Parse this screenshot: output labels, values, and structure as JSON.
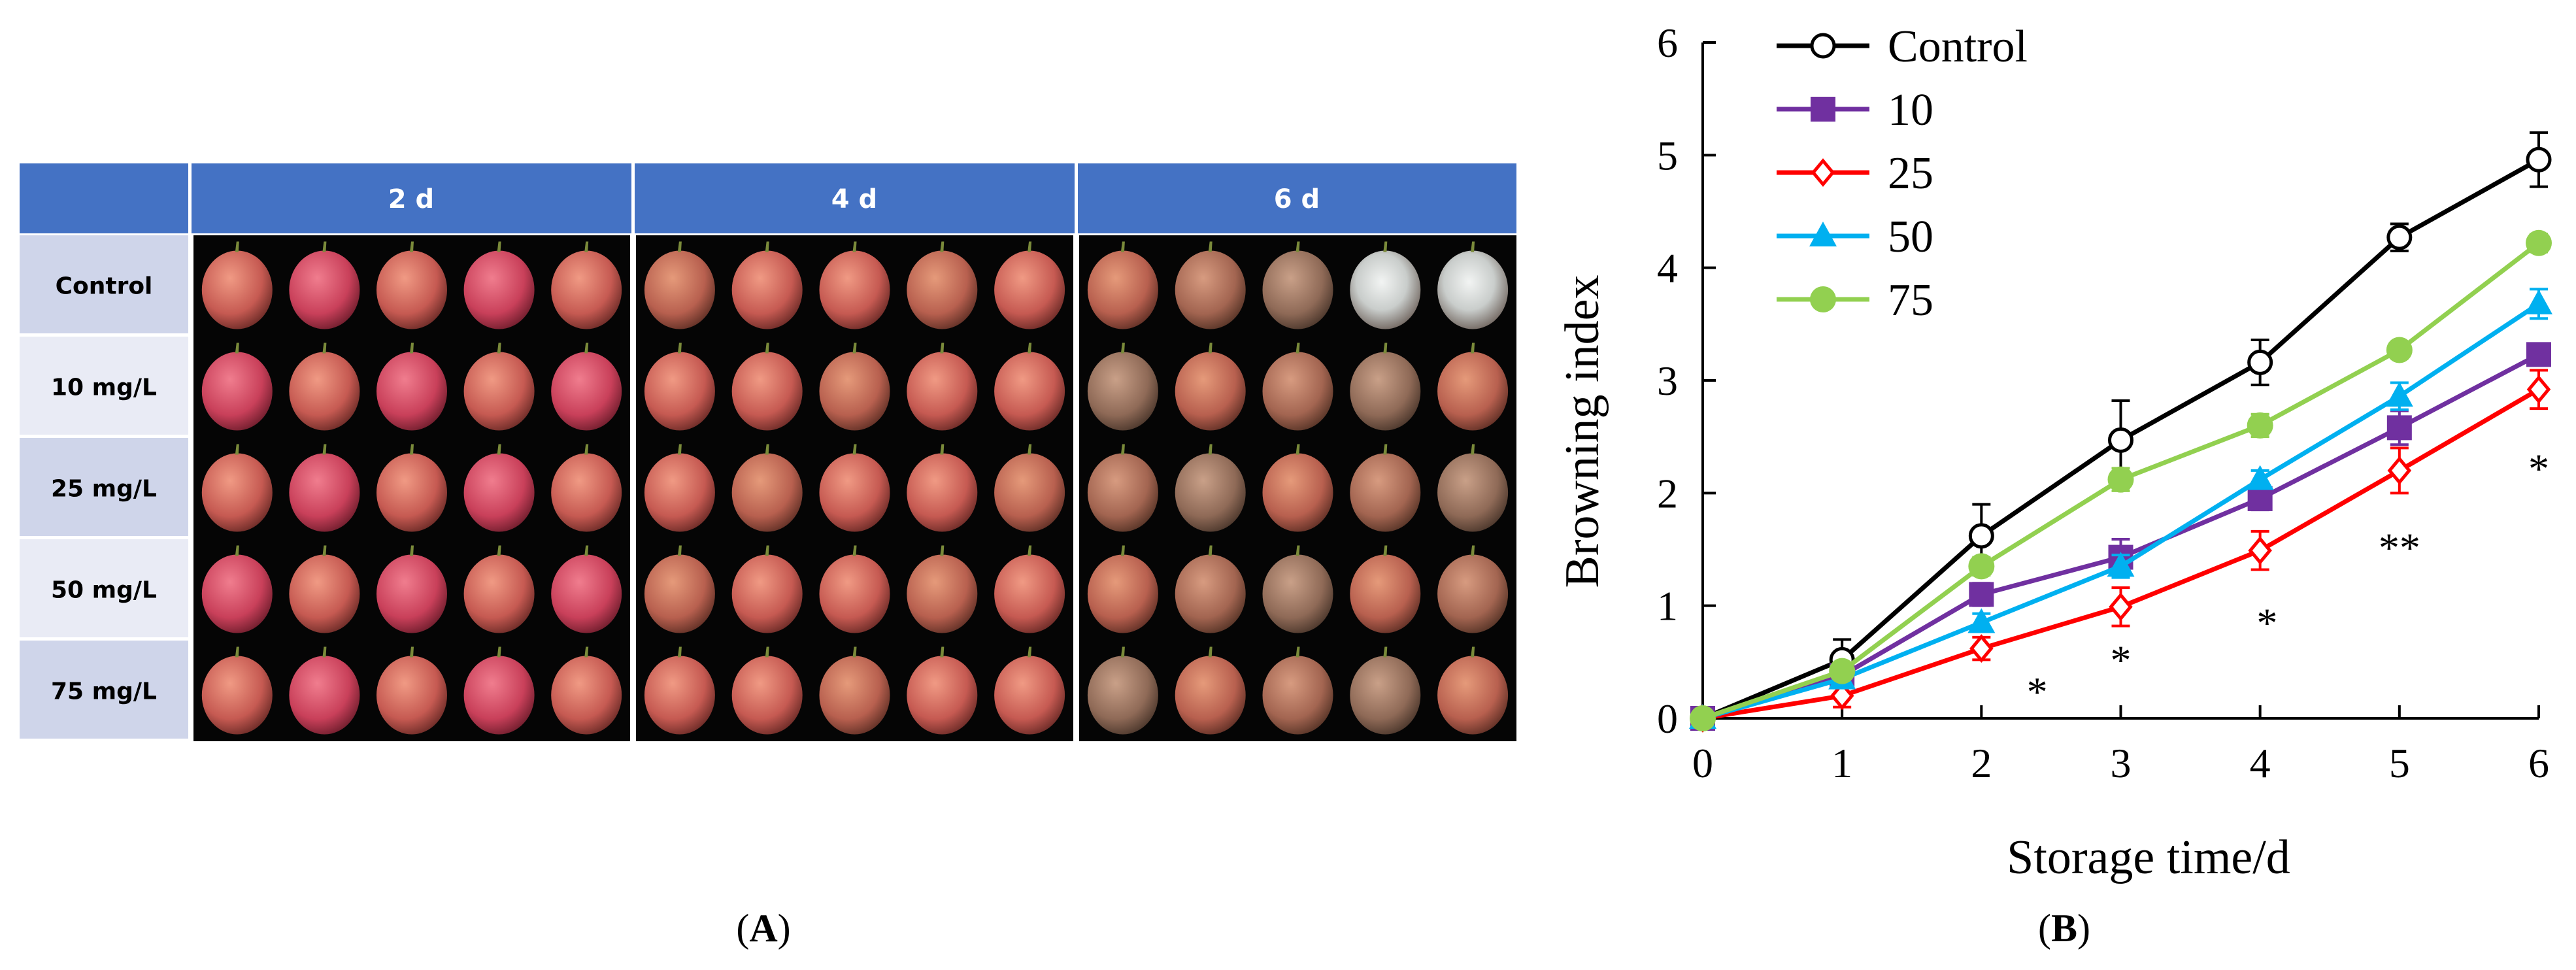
{
  "panel_a": {
    "label": "A",
    "column_headers": [
      "2 d",
      "4 d",
      "6 d"
    ],
    "row_labels": [
      "Control",
      "10 mg/L",
      "25 mg/L",
      "50 mg/L",
      "75 mg/L"
    ],
    "header_color": "#4472C4",
    "row_label_colors": [
      "#CFD5EA",
      "#E9EBF5"
    ]
  },
  "panel_b": {
    "label": "B"
  },
  "chart_data": {
    "type": "line",
    "xlabel": "Storage time/d",
    "ylabel": "Browning index",
    "x": [
      0,
      1,
      2,
      3,
      4,
      5,
      6
    ],
    "xlim": [
      0,
      6
    ],
    "ylim": [
      0,
      6
    ],
    "xticks": [
      0,
      1,
      2,
      3,
      4,
      5,
      6
    ],
    "yticks": [
      0,
      1,
      2,
      3,
      4,
      5,
      6
    ],
    "grid": false,
    "legend_position": "top-left",
    "series": [
      {
        "name": "Control",
        "color": "#000000",
        "marker": "open-circle",
        "values": [
          0,
          0.52,
          1.62,
          2.47,
          3.16,
          4.27,
          4.96
        ],
        "errors": [
          0,
          0.18,
          0.28,
          0.35,
          0.2,
          0.12,
          0.24
        ]
      },
      {
        "name": "10",
        "color": "#7030A0",
        "marker": "filled-square",
        "values": [
          0,
          0.38,
          1.1,
          1.43,
          1.95,
          2.58,
          3.23
        ],
        "errors": [
          0,
          0.05,
          0.1,
          0.16,
          0.1,
          0.15,
          0.08
        ]
      },
      {
        "name": "25",
        "color": "#FF0000",
        "marker": "open-diamond",
        "values": [
          0,
          0.2,
          0.62,
          0.99,
          1.49,
          2.2,
          2.92
        ],
        "errors": [
          0,
          0.1,
          0.1,
          0.17,
          0.17,
          0.2,
          0.17
        ]
      },
      {
        "name": "50",
        "color": "#00B0F0",
        "marker": "filled-triangle",
        "values": [
          0,
          0.35,
          0.85,
          1.35,
          2.12,
          2.86,
          3.68
        ],
        "errors": [
          0,
          0.05,
          0.08,
          0.1,
          0.08,
          0.12,
          0.13
        ]
      },
      {
        "name": "75",
        "color": "#92D050",
        "marker": "filled-circle",
        "values": [
          0,
          0.42,
          1.35,
          2.12,
          2.6,
          3.27,
          4.22
        ],
        "errors": [
          0,
          0.06,
          0.08,
          0.1,
          0.1,
          0.06,
          0.08
        ]
      }
    ],
    "annotations": [
      {
        "text": "*",
        "x": 2.4,
        "y": 0.32
      },
      {
        "text": "*",
        "x": 3.0,
        "y": 0.6
      },
      {
        "text": "*",
        "x": 4.05,
        "y": 0.93
      },
      {
        "text": "**",
        "x": 5.0,
        "y": 1.6
      },
      {
        "text": "*",
        "x": 6.0,
        "y": 2.3
      }
    ]
  }
}
